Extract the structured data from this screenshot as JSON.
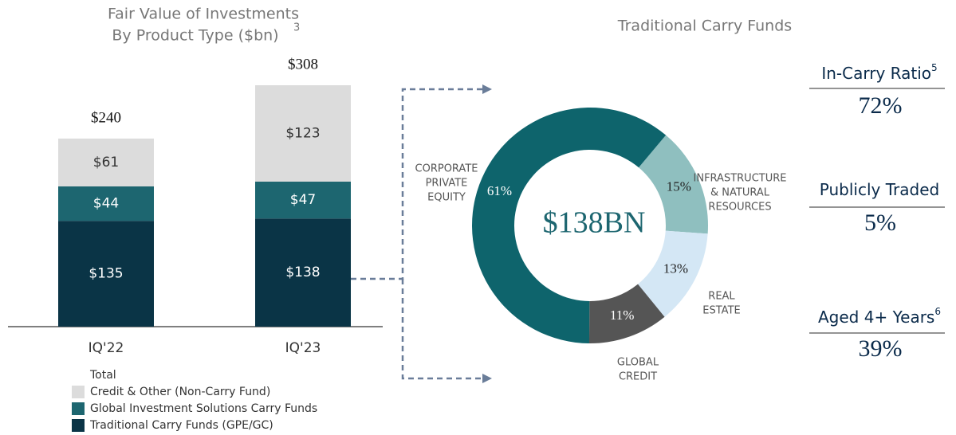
{
  "chart_data": [
    {
      "type": "bar",
      "stacked": true,
      "title": [
        "Fair Value of Investments",
        "By Product Type ($bn)"
      ],
      "title_note": "3",
      "categories": [
        "IQ'22",
        "IQ'23"
      ],
      "series": [
        {
          "name": "Traditional Carry Funds (GPE/GC)",
          "color": "#0a3446",
          "values": [
            135,
            138
          ],
          "value_labels": [
            "$135",
            "$138"
          ]
        },
        {
          "name": "Global Investment Solutions Carry Funds",
          "color": "#1d6670",
          "values": [
            44,
            47
          ],
          "value_labels": [
            "$44",
            "$47"
          ]
        },
        {
          "name": "Credit & Other (Non-Carry Fund)",
          "color": "#dcdcdc",
          "values": [
            61,
            123
          ],
          "value_labels": [
            "$61",
            "$123"
          ]
        }
      ],
      "totals_name": "Total",
      "totals": [
        240,
        308
      ],
      "total_labels": [
        "$240",
        "$308"
      ]
    },
    {
      "type": "donut",
      "title": "Traditional Carry Funds",
      "center_label": "$138BN",
      "categories": [
        [
          "INFRASTRUCTURE",
          "& NATURAL",
          "RESOURCES"
        ],
        [
          "REAL",
          "ESTATE"
        ],
        [
          "GLOBAL",
          "CREDIT"
        ],
        [
          "CORPORATE",
          "PRIVATE",
          "EQUITY"
        ]
      ],
      "values": [
        15,
        13,
        11,
        61
      ],
      "value_labels": [
        "15%",
        "13%",
        "11%",
        "61%"
      ],
      "colors": [
        "#8fbfbf",
        "#d4e7f5",
        "#555555",
        "#0e646c"
      ]
    }
  ],
  "metrics": [
    {
      "label": "In-Carry Ratio",
      "note": "5",
      "value": 72,
      "value_label": "72%"
    },
    {
      "label": "Publicly Traded",
      "value": 5,
      "value_label": "5%"
    },
    {
      "label": "Aged 4+ Years",
      "note": "6",
      "value": 39,
      "value_label": "39%"
    }
  ]
}
